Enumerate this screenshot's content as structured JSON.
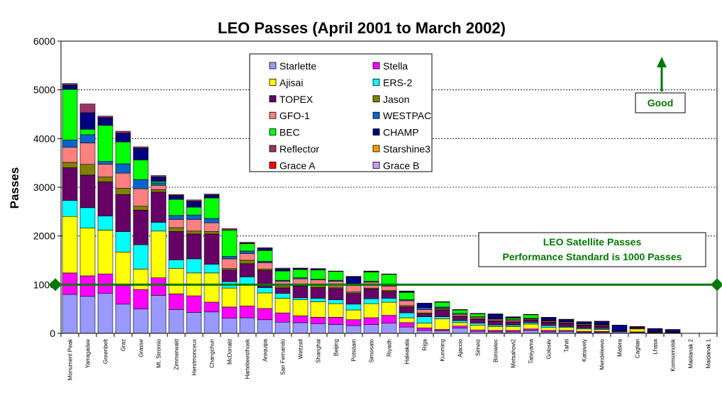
{
  "chart_data": {
    "type": "bar",
    "stacked": true,
    "title": "LEO Passes (April 2001 to March 2002)",
    "xlabel": "",
    "ylabel": "Passes",
    "ylim": [
      0,
      6000
    ],
    "yticks": [
      0,
      1000,
      2000,
      3000,
      4000,
      5000,
      6000
    ],
    "grid": "horizontal-dotted",
    "legend_position": "top-center",
    "categories": [
      "Monument Peak",
      "Yarragadee",
      "Greenbelt",
      "Graz",
      "Grasse",
      "Mt. Stromlo",
      "Zimmerwald",
      "Herstmonceux",
      "Changchun",
      "McDonald",
      "Hartebeesthoek",
      "Arequipa",
      "San Fernando",
      "Wettzell",
      "Shanghai",
      "Beijing",
      "Potsdam",
      "Simosato",
      "Riyadh",
      "Haleakala",
      "Riga",
      "Kunming",
      "Ajaccio",
      "Simeiz",
      "Borowiec",
      "Metsahovi2",
      "Tateyama",
      "Golosiiv",
      "Tahiti",
      "Katsively",
      "Mendeleevo",
      "Matera",
      "Cagliari",
      "Lhasa",
      "Komsomolsk",
      "Maidanak 2",
      "Maidanak 1"
    ],
    "series": [
      {
        "name": "Starlette",
        "color": "#9999ff",
        "values": [
          800,
          760,
          820,
          600,
          500,
          780,
          490,
          430,
          440,
          310,
          320,
          280,
          230,
          220,
          200,
          180,
          160,
          180,
          210,
          130,
          60,
          50,
          110,
          40,
          30,
          30,
          60,
          30,
          40,
          20,
          20,
          30,
          20,
          10,
          5,
          0,
          0
        ]
      },
      {
        "name": "Stella",
        "color": "#ff00ff",
        "values": [
          440,
          420,
          400,
          380,
          400,
          360,
          320,
          340,
          200,
          230,
          240,
          230,
          190,
          140,
          130,
          150,
          120,
          140,
          160,
          90,
          50,
          30,
          40,
          30,
          30,
          30,
          30,
          30,
          20,
          20,
          20,
          0,
          10,
          10,
          5,
          0,
          0
        ]
      },
      {
        "name": "Ajisai",
        "color": "#ffff00",
        "values": [
          1160,
          980,
          900,
          690,
          420,
          960,
          520,
          470,
          600,
          390,
          440,
          320,
          300,
          330,
          320,
          280,
          200,
          290,
          270,
          100,
          100,
          220,
          70,
          100,
          80,
          80,
          100,
          60,
          60,
          50,
          40,
          0,
          60,
          10,
          10,
          0,
          0
        ]
      },
      {
        "name": "ERS-2",
        "color": "#00ffff",
        "values": [
          330,
          420,
          290,
          420,
          500,
          180,
          180,
          290,
          180,
          130,
          160,
          110,
          100,
          40,
          70,
          80,
          120,
          100,
          80,
          100,
          130,
          40,
          40,
          40,
          30,
          30,
          30,
          40,
          20,
          20,
          20,
          0,
          0,
          0,
          0,
          0,
          0
        ]
      },
      {
        "name": "TOPEX",
        "color": "#660066",
        "values": [
          670,
          670,
          700,
          760,
          710,
          620,
          580,
          510,
          620,
          240,
          270,
          350,
          110,
          240,
          220,
          230,
          220,
          200,
          140,
          120,
          60,
          140,
          80,
          80,
          80,
          60,
          50,
          60,
          60,
          50,
          40,
          20,
          30,
          20,
          20,
          0,
          0
        ]
      },
      {
        "name": "Jason",
        "color": "#808000",
        "values": [
          110,
          220,
          100,
          130,
          80,
          50,
          80,
          60,
          50,
          30,
          70,
          30,
          30,
          40,
          50,
          30,
          30,
          20,
          20,
          30,
          20,
          20,
          20,
          10,
          10,
          10,
          10,
          10,
          10,
          10,
          10,
          0,
          0,
          0,
          0,
          0,
          0
        ]
      },
      {
        "name": "GFO-1",
        "color": "#ff8080",
        "values": [
          310,
          440,
          260,
          310,
          360,
          90,
          170,
          240,
          180,
          200,
          140,
          130,
          110,
          110,
          110,
          120,
          130,
          120,
          90,
          100,
          70,
          20,
          30,
          30,
          30,
          30,
          20,
          20,
          20,
          20,
          20,
          0,
          10,
          0,
          0,
          0,
          0
        ]
      },
      {
        "name": "WESTPAC",
        "color": "#0066cc",
        "values": [
          150,
          170,
          60,
          190,
          190,
          50,
          80,
          90,
          90,
          50,
          50,
          30,
          20,
          20,
          10,
          20,
          20,
          20,
          20,
          20,
          40,
          20,
          20,
          10,
          10,
          10,
          10,
          10,
          10,
          10,
          10,
          0,
          0,
          0,
          0,
          0,
          0
        ]
      },
      {
        "name": "BEC",
        "color": "#00ff00",
        "values": [
          1040,
          110,
          740,
          450,
          400,
          30,
          330,
          160,
          420,
          540,
          150,
          220,
          190,
          170,
          190,
          180,
          10,
          190,
          220,
          150,
          0,
          100,
          70,
          60,
          0,
          30,
          70,
          0,
          0,
          0,
          0,
          0,
          0,
          0,
          0,
          0,
          0
        ]
      },
      {
        "name": "CHAMP",
        "color": "#000080",
        "values": [
          90,
          340,
          160,
          180,
          240,
          90,
          80,
          120,
          60,
          0,
          10,
          40,
          40,
          20,
          20,
          0,
          150,
          10,
          0,
          20,
          90,
          0,
          0,
          0,
          90,
          20,
          0,
          60,
          40,
          30,
          60,
          120,
          0,
          50,
          40,
          0,
          0
        ]
      },
      {
        "name": "Reflector",
        "color": "#993366",
        "values": [
          30,
          180,
          30,
          40,
          30,
          30,
          20,
          30,
          20,
          30,
          20,
          20,
          20,
          10,
          10,
          10,
          10,
          10,
          10,
          10,
          0,
          10,
          10,
          10,
          10,
          10,
          10,
          10,
          10,
          10,
          10,
          0,
          10,
          0,
          0,
          0,
          0
        ]
      },
      {
        "name": "Starshine3",
        "color": "#ff9900",
        "values": [
          0,
          0,
          0,
          0,
          0,
          0,
          0,
          0,
          0,
          0,
          0,
          0,
          0,
          0,
          0,
          0,
          0,
          0,
          0,
          0,
          0,
          0,
          0,
          0,
          0,
          0,
          0,
          0,
          0,
          0,
          0,
          0,
          0,
          0,
          0,
          0,
          0
        ]
      },
      {
        "name": "Grace A",
        "color": "#ff0000",
        "values": [
          0,
          0,
          0,
          0,
          0,
          0,
          0,
          0,
          0,
          0,
          0,
          0,
          0,
          0,
          0,
          0,
          0,
          0,
          0,
          0,
          0,
          0,
          0,
          0,
          0,
          0,
          0,
          0,
          0,
          0,
          0,
          0,
          0,
          0,
          0,
          0,
          0
        ]
      },
      {
        "name": "Grace B",
        "color": "#cc99ff",
        "values": [
          0,
          0,
          0,
          0,
          0,
          0,
          0,
          0,
          0,
          0,
          0,
          0,
          0,
          0,
          0,
          0,
          0,
          0,
          0,
          0,
          0,
          0,
          0,
          0,
          0,
          0,
          0,
          0,
          0,
          0,
          0,
          0,
          0,
          0,
          0,
          0,
          0
        ]
      }
    ],
    "legend_order": [
      "Starlette",
      "Stella",
      "Ajisai",
      "ERS-2",
      "TOPEX",
      "Jason",
      "GFO-1",
      "WESTPAC",
      "BEC",
      "CHAMP",
      "Reflector",
      "Starshine3",
      "Grace A",
      "Grace B"
    ],
    "reference_line": {
      "value": 1000,
      "color": "#007700"
    },
    "annotations": {
      "good_label": "Good",
      "standard_line1": "LEO Satellite Passes",
      "standard_line2": "Performance Standard is 1000 Passes",
      "text_color": "#007700"
    },
    "plot_background": "#ffffff",
    "bar_outline": "#000000"
  }
}
